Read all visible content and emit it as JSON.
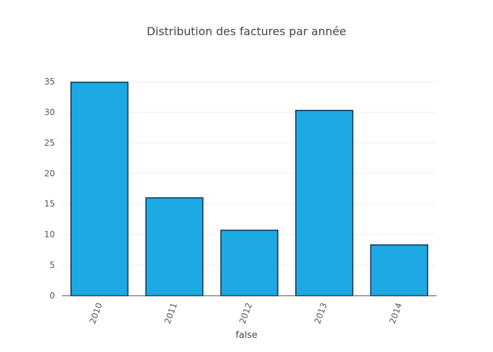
{
  "chart_data": {
    "type": "bar",
    "title": "Distribution des factures par année",
    "xlabel": "false",
    "ylabel": "",
    "categories": [
      "2010",
      "2011",
      "2012",
      "2013",
      "2014"
    ],
    "values": [
      34.9,
      16.0,
      10.7,
      30.3,
      8.3
    ],
    "ylim": [
      0,
      35
    ],
    "yticks": [
      0,
      5,
      10,
      15,
      20,
      25,
      30,
      35
    ],
    "grid": true,
    "legend": false,
    "bar_color": "#1ca9e4",
    "bar_edge_color": "#0b2d4d"
  }
}
